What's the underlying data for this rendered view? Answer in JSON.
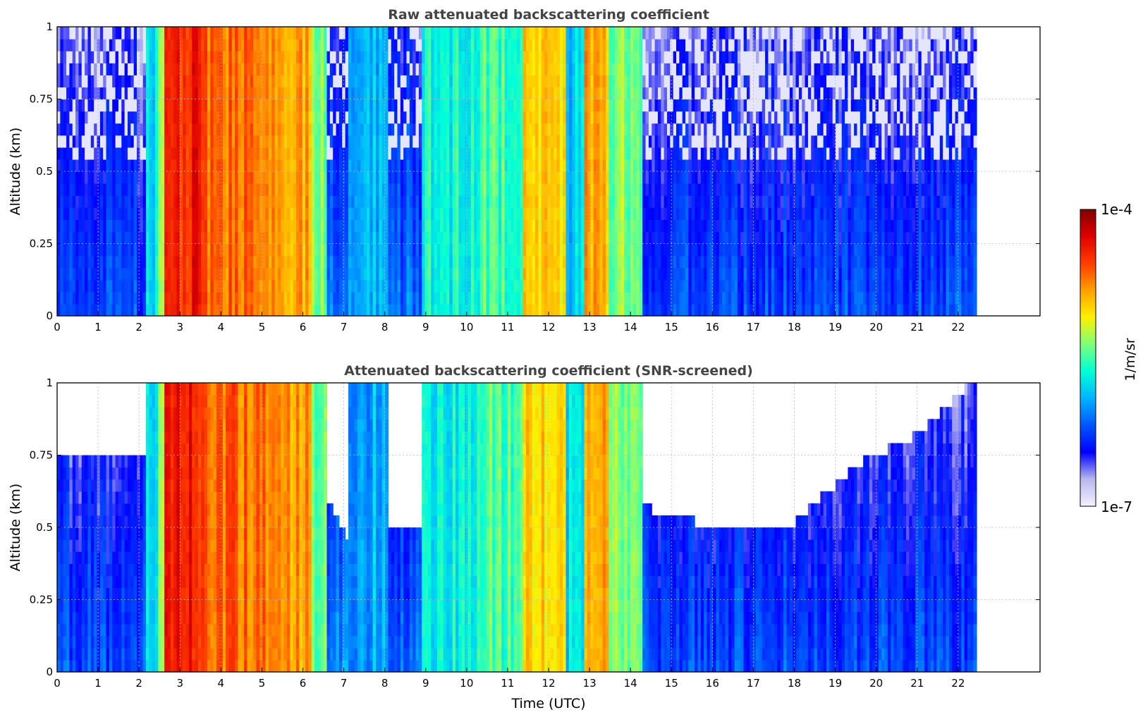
{
  "chart_data": [
    {
      "type": "heatmap",
      "title": "Raw attenuated backscattering coefficient",
      "xlabel": "",
      "ylabel": "Altitude (km)",
      "xlim": [
        0,
        24
      ],
      "ylim": [
        0,
        1
      ],
      "x_ticks": [
        "0",
        "1",
        "2",
        "3",
        "4",
        "5",
        "6",
        "7",
        "8",
        "9",
        "10",
        "11",
        "12",
        "13",
        "14",
        "15",
        "16",
        "17",
        "18",
        "19",
        "20",
        "21",
        "22"
      ],
      "y_ticks": [
        "0",
        "0.25",
        "0.5",
        "0.75",
        "1"
      ],
      "x_tick_values": [
        0,
        1,
        2,
        3,
        4,
        5,
        6,
        7,
        8,
        9,
        10,
        11,
        12,
        13,
        14,
        15,
        16,
        17,
        18,
        19,
        20,
        21,
        22
      ],
      "y_tick_values": [
        0,
        0.25,
        0.5,
        0.75,
        1
      ],
      "grid": true,
      "data_end_hour": 22.45,
      "screened": false,
      "intensity_profile": [
        {
          "t0": 0.0,
          "t1": 2.2,
          "level": 0.18
        },
        {
          "t0": 2.2,
          "t1": 2.45,
          "level": 0.42
        },
        {
          "t0": 2.45,
          "t1": 2.65,
          "level": 0.62
        },
        {
          "t0": 2.65,
          "t1": 3.6,
          "level": 0.86
        },
        {
          "t0": 3.6,
          "t1": 5.2,
          "level": 0.78
        },
        {
          "t0": 5.2,
          "t1": 6.2,
          "level": 0.72
        },
        {
          "t0": 6.2,
          "t1": 6.6,
          "level": 0.52
        },
        {
          "t0": 6.6,
          "t1": 7.1,
          "level": 0.24
        },
        {
          "t0": 7.1,
          "t1": 8.1,
          "level": 0.36
        },
        {
          "t0": 8.1,
          "t1": 8.9,
          "level": 0.22
        },
        {
          "t0": 8.9,
          "t1": 10.4,
          "level": 0.45
        },
        {
          "t0": 10.4,
          "t1": 11.4,
          "level": 0.5
        },
        {
          "t0": 11.4,
          "t1": 12.4,
          "level": 0.66
        },
        {
          "t0": 12.4,
          "t1": 12.9,
          "level": 0.4
        },
        {
          "t0": 12.9,
          "t1": 13.5,
          "level": 0.72
        },
        {
          "t0": 13.5,
          "t1": 14.3,
          "level": 0.55
        },
        {
          "t0": 14.3,
          "t1": 22.45,
          "level": 0.18
        }
      ]
    },
    {
      "type": "heatmap",
      "title": "Attenuated backscattering coefficient (SNR-screened)",
      "xlabel": "Time (UTC)",
      "ylabel": "Altitude (km)",
      "xlim": [
        0,
        24
      ],
      "ylim": [
        0,
        1
      ],
      "x_ticks": [
        "0",
        "1",
        "2",
        "3",
        "4",
        "5",
        "6",
        "7",
        "8",
        "9",
        "10",
        "11",
        "12",
        "13",
        "14",
        "15",
        "16",
        "17",
        "18",
        "19",
        "20",
        "21",
        "22"
      ],
      "y_ticks": [
        "0",
        "0.25",
        "0.5",
        "0.75",
        "1"
      ],
      "x_tick_values": [
        0,
        1,
        2,
        3,
        4,
        5,
        6,
        7,
        8,
        9,
        10,
        11,
        12,
        13,
        14,
        15,
        16,
        17,
        18,
        19,
        20,
        21,
        22
      ],
      "y_tick_values": [
        0,
        0.25,
        0.5,
        0.75,
        1
      ],
      "grid": true,
      "data_end_hour": 22.45,
      "screened": true,
      "intensity_profile": [
        {
          "t0": 0.0,
          "t1": 2.2,
          "level": 0.18
        },
        {
          "t0": 2.2,
          "t1": 2.45,
          "level": 0.42
        },
        {
          "t0": 2.45,
          "t1": 2.65,
          "level": 0.62
        },
        {
          "t0": 2.65,
          "t1": 3.6,
          "level": 0.86
        },
        {
          "t0": 3.6,
          "t1": 5.2,
          "level": 0.78
        },
        {
          "t0": 5.2,
          "t1": 6.2,
          "level": 0.72
        },
        {
          "t0": 6.2,
          "t1": 6.6,
          "level": 0.52
        },
        {
          "t0": 6.6,
          "t1": 7.1,
          "level": 0.24
        },
        {
          "t0": 7.1,
          "t1": 8.1,
          "level": 0.36
        },
        {
          "t0": 8.1,
          "t1": 8.9,
          "level": 0.22
        },
        {
          "t0": 8.9,
          "t1": 10.4,
          "level": 0.45
        },
        {
          "t0": 10.4,
          "t1": 11.4,
          "level": 0.5
        },
        {
          "t0": 11.4,
          "t1": 12.4,
          "level": 0.66
        },
        {
          "t0": 12.4,
          "t1": 12.9,
          "level": 0.4
        },
        {
          "t0": 12.9,
          "t1": 13.5,
          "level": 0.72
        },
        {
          "t0": 13.5,
          "t1": 14.3,
          "level": 0.55
        },
        {
          "t0": 14.3,
          "t1": 22.45,
          "level": 0.18
        }
      ],
      "screened_ceiling": [
        {
          "t": 0.0,
          "alt": 0.75
        },
        {
          "t": 2.1,
          "alt": 0.75
        },
        {
          "t": 6.7,
          "alt": 0.55
        },
        {
          "t": 7.0,
          "alt": 0.45
        },
        {
          "t": 14.3,
          "alt": 0.55
        },
        {
          "t": 15.5,
          "alt": 0.5
        },
        {
          "t": 18.0,
          "alt": 0.5
        },
        {
          "t": 19.5,
          "alt": 0.7
        },
        {
          "t": 21.0,
          "alt": 0.8
        },
        {
          "t": 22.45,
          "alt": 1.0
        }
      ]
    }
  ],
  "colorbar": {
    "min_label": "1e-7",
    "max_label": "1e-4",
    "unit_label": "1/m/sr",
    "colormap": "jet",
    "colors": [
      "#f2f2ff",
      "#b8b8f0",
      "#0000ff",
      "#0055ff",
      "#00b4ff",
      "#00ffd8",
      "#7dff7a",
      "#fff000",
      "#ffa000",
      "#ff3c00",
      "#e00000",
      "#800000"
    ]
  }
}
